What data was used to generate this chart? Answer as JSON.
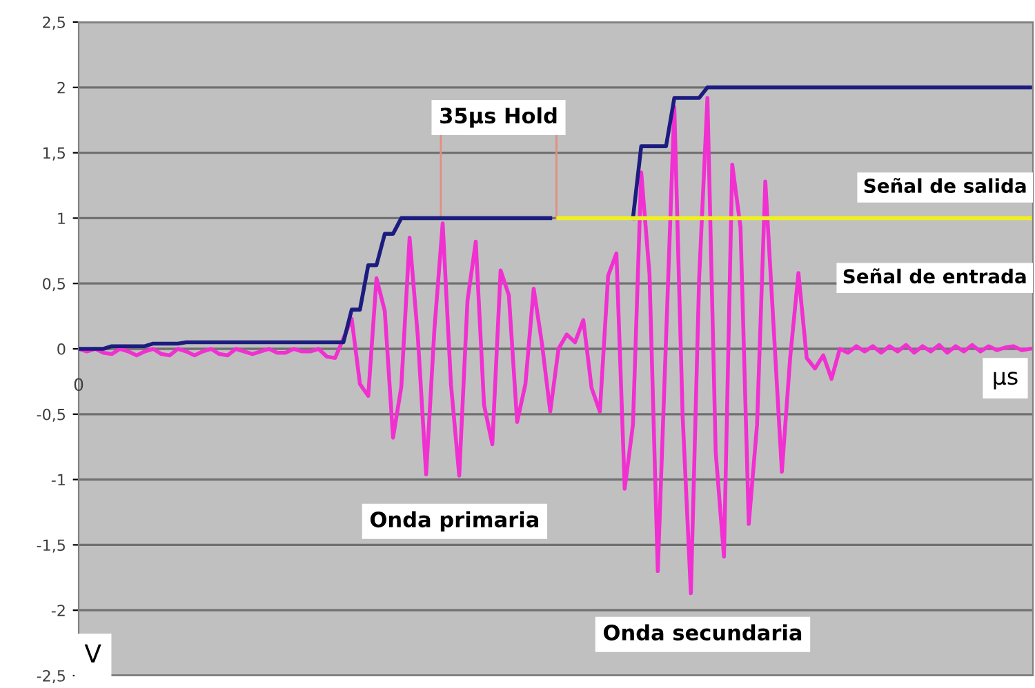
{
  "chart_data": {
    "type": "line",
    "xlabel": "µs",
    "ylabel": "V",
    "categories": [
      null,
      null,
      null,
      null,
      null,
      null,
      null,
      null,
      null,
      null,
      null,
      null,
      null,
      null,
      null,
      null,
      null,
      null,
      null,
      null,
      null,
      null,
      null,
      null,
      null,
      null,
      null,
      null,
      null,
      null,
      null,
      null,
      null,
      null,
      null,
      null,
      null,
      null,
      null,
      null,
      null,
      null,
      null,
      null,
      null,
      null,
      null,
      null,
      null,
      null,
      null,
      null,
      null,
      null,
      null,
      null,
      null,
      null,
      null,
      null,
      null,
      null,
      null,
      null,
      null,
      null,
      null,
      null,
      null,
      null,
      null,
      null,
      null,
      null,
      null,
      null,
      null,
      null,
      null,
      null,
      null,
      null,
      null,
      null,
      null,
      null,
      null,
      null,
      null,
      null,
      null,
      null,
      null,
      null,
      null,
      null,
      null,
      null,
      null,
      null,
      null,
      null,
      null,
      null,
      null,
      null,
      null,
      null,
      null,
      null,
      null,
      null,
      null,
      null,
      null,
      null
    ],
    "ylim": [
      -2.5,
      2.5
    ],
    "yticks": [
      {
        "value": 2.5,
        "label": "2,5"
      },
      2,
      {
        "value": 1.5,
        "label": "1,5"
      },
      1,
      {
        "value": 0.5,
        "label": "0,5"
      },
      0,
      {
        "value": -0.5,
        "label": "-0,5"
      },
      -1,
      {
        "value": -1.5,
        "label": "-1,5"
      },
      -2,
      {
        "value": -2.5,
        "label": "-2,5"
      }
    ],
    "tick_labels": "y",
    "grid": "y",
    "series": [
      {
        "name": "Señal de entrada",
        "color": "#f030d0",
        "values": [
          0,
          -0.02,
          0,
          -0.03,
          -0.04,
          0,
          -0.02,
          -0.05,
          -0.02,
          0,
          -0.04,
          -0.05,
          0,
          -0.02,
          -0.05,
          -0.02,
          0,
          -0.04,
          -0.05,
          0,
          -0.02,
          -0.04,
          -0.02,
          0,
          -0.03,
          -0.03,
          0,
          -0.02,
          -0.02,
          0,
          -0.06,
          -0.07,
          0.08,
          0.23,
          -0.27,
          -0.36,
          0.54,
          0.29,
          -0.68,
          -0.29,
          0.85,
          0.09,
          -0.96,
          0.15,
          0.96,
          -0.27,
          -0.97,
          0.37,
          0.82,
          -0.43,
          -0.73,
          0.6,
          0.41,
          -0.56,
          -0.27,
          0.46,
          0.04,
          -0.48,
          0,
          0.11,
          0.05,
          0.22,
          -0.3,
          -0.48,
          0.56,
          0.73,
          -1.07,
          -0.58,
          1.35,
          0.57,
          -1.7,
          0.08,
          1.85,
          -0.51,
          -1.87,
          0.54,
          1.92,
          -0.79,
          -1.59,
          1.41,
          0.93,
          -1.34,
          -0.58,
          1.28,
          0.17,
          -0.94,
          -0.07,
          0.58,
          -0.07,
          -0.15,
          -0.05,
          -0.23,
          0,
          -0.03,
          0.02,
          -0.02,
          0.02,
          -0.03,
          0.02,
          -0.02,
          0.03,
          -0.03,
          0.02,
          -0.02,
          0.03,
          -0.03,
          0.02,
          -0.02,
          0.03,
          -0.02,
          0.02,
          -0.01,
          0.01,
          0.02,
          -0.01,
          0
        ]
      },
      {
        "color": "#1c1c80",
        "values": [
          0,
          0,
          0,
          0,
          0.02,
          0.02,
          0.02,
          0.02,
          0.02,
          0.04,
          0.04,
          0.04,
          0.04,
          0.05,
          0.05,
          0.05,
          0.05,
          0.05,
          0.05,
          0.05,
          0.05,
          0.05,
          0.05,
          0.05,
          0.05,
          0.05,
          0.05,
          0.05,
          0.05,
          0.05,
          0.05,
          0.05,
          0.05,
          0.3,
          0.3,
          0.64,
          0.64,
          0.88,
          0.88,
          1.0,
          1.0,
          1.0,
          1.0,
          1.0,
          1.0,
          1.0,
          1.0,
          1.0,
          1.0,
          1.0,
          1.0,
          1.0,
          1.0,
          1.0,
          1.0,
          1.0,
          1.0,
          1.0,
          null,
          null,
          null,
          null,
          null,
          null,
          null,
          null,
          null,
          1.0,
          1.55,
          1.55,
          1.55,
          1.55,
          1.92,
          1.92,
          1.92,
          1.92,
          2.0,
          2.0,
          2.0,
          2.0,
          2.0,
          2.0,
          2.0,
          2.0,
          2.0,
          2.0,
          2.0,
          2.0,
          2.0,
          2.0,
          2.0,
          2.0,
          2.0,
          2.0,
          2.0,
          2.0,
          2.0,
          2.0,
          2.0,
          2.0,
          2.0,
          2.0,
          2.0,
          2.0,
          2.0,
          2.0,
          2.0,
          2.0,
          2.0,
          2.0,
          2.0,
          2.0,
          2.0,
          2.0,
          2.0,
          2.0
        ]
      },
      {
        "name": "Señal de salida",
        "color": "#f0f020",
        "values": [
          null,
          null,
          null,
          null,
          null,
          null,
          null,
          null,
          null,
          null,
          null,
          null,
          null,
          null,
          null,
          null,
          null,
          null,
          null,
          null,
          null,
          null,
          null,
          null,
          null,
          null,
          null,
          null,
          null,
          null,
          null,
          null,
          null,
          null,
          null,
          null,
          null,
          null,
          null,
          null,
          null,
          null,
          null,
          null,
          null,
          null,
          null,
          null,
          null,
          null,
          null,
          null,
          null,
          null,
          null,
          null,
          null,
          null,
          1,
          1,
          1,
          1,
          1,
          1,
          1,
          1,
          1,
          1,
          1,
          1,
          1,
          1,
          1,
          1,
          1,
          1,
          1,
          1,
          1,
          1,
          1,
          1,
          1,
          1,
          1,
          1,
          1,
          1,
          1,
          1,
          1,
          1,
          1,
          1,
          1,
          1,
          1,
          1,
          1,
          1,
          1,
          1,
          1,
          1,
          1,
          1,
          1,
          1,
          1,
          1,
          1,
          1,
          1,
          1,
          1,
          1
        ]
      }
    ],
    "annotations": [
      "35µs Hold",
      "Onda primaria",
      "Onda secundaria",
      "0"
    ]
  }
}
